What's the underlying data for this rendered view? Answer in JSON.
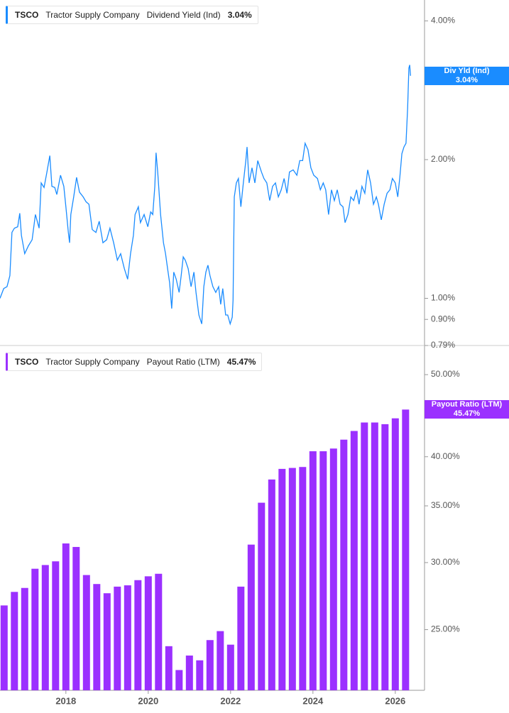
{
  "chart_data": [
    {
      "type": "line",
      "ticker": "TSCO",
      "company": "Tractor Supply Company",
      "log": true,
      "grid": false,
      "xlim": [
        2016.4,
        2026.71
      ],
      "ylim": [
        0.79,
        4.44
      ],
      "yticks": [
        {
          "value": 0.79,
          "label": "0.79%"
        },
        {
          "value": 0.9,
          "label": "0.90%"
        },
        {
          "value": 1,
          "label": "1.00%"
        },
        {
          "value": 2,
          "label": "2.00%"
        },
        {
          "value": 4,
          "label": "4.00%"
        }
      ],
      "x": [
        2016.4,
        2016.49,
        2016.57,
        2016.64,
        2016.69,
        2016.75,
        2016.83,
        2016.88,
        2016.92,
        2017.0,
        2017.09,
        2017.18,
        2017.26,
        2017.35,
        2017.4,
        2017.47,
        2017.54,
        2017.61,
        2017.66,
        2017.73,
        2017.78,
        2017.87,
        2017.95,
        2018.0,
        2018.06,
        2018.09,
        2018.12,
        2018.19,
        2018.26,
        2018.33,
        2018.42,
        2018.49,
        2018.56,
        2018.64,
        2018.73,
        2018.81,
        2018.9,
        2018.99,
        2019.07,
        2019.16,
        2019.25,
        2019.33,
        2019.42,
        2019.5,
        2019.57,
        2019.64,
        2019.68,
        2019.76,
        2019.81,
        2019.9,
        2019.99,
        2020.06,
        2020.11,
        2020.16,
        2020.19,
        2020.23,
        2020.3,
        2020.37,
        2020.42,
        2020.47,
        2020.52,
        2020.57,
        2020.62,
        2020.68,
        2020.75,
        2020.8,
        2020.85,
        2020.9,
        2020.97,
        2021.04,
        2021.11,
        2021.16,
        2021.23,
        2021.3,
        2021.35,
        2021.4,
        2021.45,
        2021.5,
        2021.57,
        2021.64,
        2021.71,
        2021.76,
        2021.81,
        2021.88,
        2021.93,
        2021.99,
        2022.04,
        2022.06,
        2022.09,
        2022.14,
        2022.19,
        2022.25,
        2022.31,
        2022.37,
        2022.4,
        2022.45,
        2022.52,
        2022.59,
        2022.66,
        2022.75,
        2022.81,
        2022.88,
        2022.95,
        2023.02,
        2023.09,
        2023.16,
        2023.23,
        2023.3,
        2023.37,
        2023.43,
        2023.52,
        2023.61,
        2023.68,
        2023.75,
        2023.81,
        2023.88,
        2023.95,
        2024.02,
        2024.11,
        2024.18,
        2024.25,
        2024.31,
        2024.38,
        2024.45,
        2024.52,
        2024.59,
        2024.66,
        2024.73,
        2024.78,
        2024.85,
        2024.92,
        2024.99,
        2025.06,
        2025.12,
        2025.19,
        2025.26,
        2025.33,
        2025.4,
        2025.47,
        2025.54,
        2025.59,
        2025.66,
        2025.73,
        2025.8,
        2025.87,
        2025.93,
        2026.0,
        2026.06,
        2026.11,
        2026.16,
        2026.21,
        2026.26,
        2026.3,
        2026.33,
        2026.35,
        2026.37
      ],
      "series": [
        {
          "name": "Dividend Yield (Ind)",
          "badge_label": "Div Yld (Ind)",
          "last_value_label": "3.04%",
          "color": "#1a8cff",
          "values": [
            1.0,
            1.05,
            1.06,
            1.12,
            1.39,
            1.42,
            1.43,
            1.53,
            1.37,
            1.25,
            1.3,
            1.34,
            1.52,
            1.42,
            1.78,
            1.74,
            1.88,
            2.04,
            1.75,
            1.74,
            1.68,
            1.85,
            1.75,
            1.58,
            1.39,
            1.32,
            1.52,
            1.66,
            1.83,
            1.7,
            1.66,
            1.62,
            1.6,
            1.41,
            1.39,
            1.47,
            1.32,
            1.34,
            1.42,
            1.32,
            1.21,
            1.25,
            1.16,
            1.1,
            1.25,
            1.37,
            1.52,
            1.58,
            1.46,
            1.52,
            1.43,
            1.54,
            1.52,
            1.75,
            2.07,
            1.88,
            1.52,
            1.32,
            1.25,
            1.16,
            1.08,
            0.95,
            1.14,
            1.1,
            1.03,
            1.12,
            1.23,
            1.21,
            1.16,
            1.06,
            1.14,
            1.03,
            0.92,
            0.88,
            1.06,
            1.14,
            1.18,
            1.12,
            1.06,
            1.03,
            1.06,
            0.97,
            1.05,
            0.92,
            0.92,
            0.88,
            0.91,
            0.99,
            1.66,
            1.78,
            1.82,
            1.58,
            1.78,
            1.99,
            2.13,
            1.78,
            1.92,
            1.78,
            1.99,
            1.88,
            1.82,
            1.78,
            1.63,
            1.75,
            1.78,
            1.66,
            1.72,
            1.82,
            1.69,
            1.88,
            1.9,
            1.85,
            1.99,
            1.99,
            2.17,
            2.1,
            1.92,
            1.85,
            1.82,
            1.72,
            1.78,
            1.72,
            1.52,
            1.72,
            1.63,
            1.72,
            1.6,
            1.58,
            1.46,
            1.52,
            1.66,
            1.63,
            1.72,
            1.6,
            1.75,
            1.69,
            1.9,
            1.78,
            1.6,
            1.66,
            1.6,
            1.48,
            1.6,
            1.69,
            1.72,
            1.82,
            1.78,
            1.66,
            1.83,
            2.06,
            2.13,
            2.17,
            2.59,
            3.16,
            3.21,
            3.04
          ]
        }
      ]
    },
    {
      "type": "bar",
      "ticker": "TSCO",
      "company": "Tractor Supply Company",
      "log": true,
      "grid": false,
      "xlim": [
        2016.4,
        2026.71
      ],
      "xticks": [
        2018,
        2020,
        2022,
        2024,
        2026
      ],
      "ylim": [
        21.2,
        53.6
      ],
      "yticks": [
        {
          "value": 25,
          "label": "25.00%"
        },
        {
          "value": 30,
          "label": "30.00%"
        },
        {
          "value": 35,
          "label": "35.00%"
        },
        {
          "value": 40,
          "label": "40.00%"
        },
        {
          "value": 50,
          "label": "50.00%"
        }
      ],
      "x": [
        2016.5,
        2016.75,
        2017,
        2017.25,
        2017.5,
        2017.75,
        2018,
        2018.25,
        2018.5,
        2018.75,
        2019,
        2019.25,
        2019.5,
        2019.75,
        2020,
        2020.25,
        2020.5,
        2020.75,
        2021,
        2021.25,
        2021.5,
        2021.75,
        2022,
        2022.25,
        2022.5,
        2022.75,
        2023,
        2023.25,
        2023.5,
        2023.75,
        2024,
        2024.25,
        2024.5,
        2024.75,
        2025,
        2025.25,
        2025.5,
        2025.75,
        2026,
        2026.25
      ],
      "series": [
        {
          "name": "Payout Ratio (LTM)",
          "last_value_label": "45.47%",
          "color": "#9b30ff",
          "values": [
            26.7,
            27.7,
            28.0,
            29.5,
            29.8,
            30.1,
            31.6,
            31.3,
            29.0,
            28.3,
            27.6,
            28.1,
            28.2,
            28.6,
            28.9,
            29.1,
            23.9,
            22.4,
            23.3,
            23.0,
            24.3,
            24.9,
            24.0,
            28.1,
            31.5,
            35.3,
            37.6,
            38.7,
            38.8,
            38.9,
            40.6,
            40.6,
            40.9,
            41.9,
            42.9,
            43.9,
            43.9,
            43.7,
            44.4,
            45.47
          ]
        }
      ]
    }
  ]
}
